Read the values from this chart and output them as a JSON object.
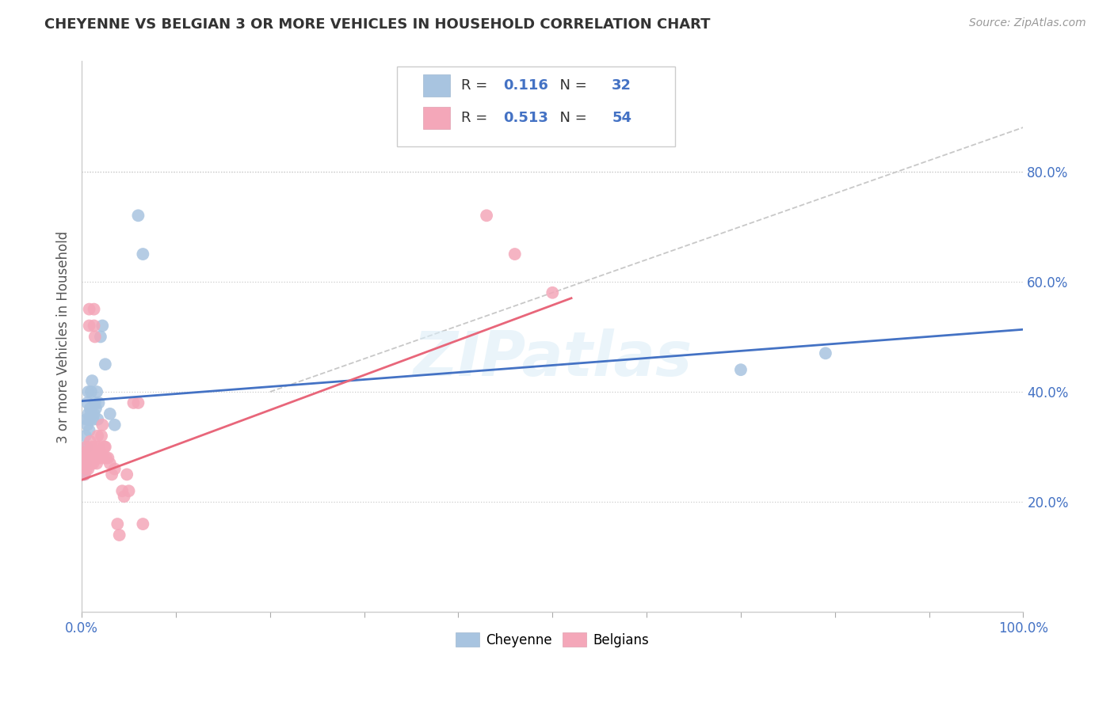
{
  "title": "CHEYENNE VS BELGIAN 3 OR MORE VEHICLES IN HOUSEHOLD CORRELATION CHART",
  "source": "Source: ZipAtlas.com",
  "ylabel": "3 or more Vehicles in Household",
  "watermark": "ZIPatlas",
  "cheyenne_R": 0.116,
  "cheyenne_N": 32,
  "belgians_R": 0.513,
  "belgians_N": 54,
  "cheyenne_color": "#a8c4e0",
  "belgians_color": "#f4a7b9",
  "cheyenne_line_color": "#4472c4",
  "belgians_line_color": "#e8667a",
  "trendline_color": "#c8c8c8",
  "right_tick_color": "#4472c4",
  "xlim": [
    0,
    1
  ],
  "ylim": [
    0,
    1
  ],
  "yticks_right": [
    0.2,
    0.4,
    0.6,
    0.8
  ],
  "cheyenne_x": [
    0.002,
    0.003,
    0.004,
    0.004,
    0.005,
    0.005,
    0.006,
    0.006,
    0.007,
    0.007,
    0.008,
    0.008,
    0.009,
    0.01,
    0.01,
    0.011,
    0.012,
    0.013,
    0.014,
    0.015,
    0.016,
    0.017,
    0.018,
    0.02,
    0.022,
    0.025,
    0.03,
    0.035,
    0.06,
    0.065,
    0.7,
    0.79
  ],
  "cheyenne_y": [
    0.28,
    0.25,
    0.32,
    0.27,
    0.35,
    0.3,
    0.34,
    0.38,
    0.36,
    0.4,
    0.35,
    0.33,
    0.37,
    0.36,
    0.4,
    0.42,
    0.35,
    0.36,
    0.38,
    0.37,
    0.4,
    0.35,
    0.38,
    0.5,
    0.52,
    0.45,
    0.36,
    0.34,
    0.72,
    0.65,
    0.44,
    0.47
  ],
  "belgians_x": [
    0.002,
    0.003,
    0.003,
    0.004,
    0.004,
    0.005,
    0.005,
    0.005,
    0.006,
    0.006,
    0.007,
    0.007,
    0.008,
    0.008,
    0.009,
    0.009,
    0.01,
    0.01,
    0.011,
    0.012,
    0.012,
    0.013,
    0.013,
    0.014,
    0.015,
    0.015,
    0.016,
    0.016,
    0.017,
    0.018,
    0.019,
    0.02,
    0.021,
    0.022,
    0.023,
    0.024,
    0.025,
    0.026,
    0.028,
    0.03,
    0.032,
    0.035,
    0.038,
    0.04,
    0.043,
    0.045,
    0.048,
    0.05,
    0.055,
    0.06,
    0.065,
    0.43,
    0.46,
    0.5
  ],
  "belgians_y": [
    0.27,
    0.28,
    0.25,
    0.27,
    0.29,
    0.26,
    0.28,
    0.3,
    0.27,
    0.29,
    0.26,
    0.28,
    0.52,
    0.55,
    0.29,
    0.31,
    0.27,
    0.29,
    0.3,
    0.27,
    0.29,
    0.52,
    0.55,
    0.5,
    0.28,
    0.3,
    0.27,
    0.29,
    0.32,
    0.3,
    0.28,
    0.29,
    0.32,
    0.34,
    0.28,
    0.3,
    0.3,
    0.28,
    0.28,
    0.27,
    0.25,
    0.26,
    0.16,
    0.14,
    0.22,
    0.21,
    0.25,
    0.22,
    0.38,
    0.38,
    0.16,
    0.72,
    0.65,
    0.58
  ]
}
